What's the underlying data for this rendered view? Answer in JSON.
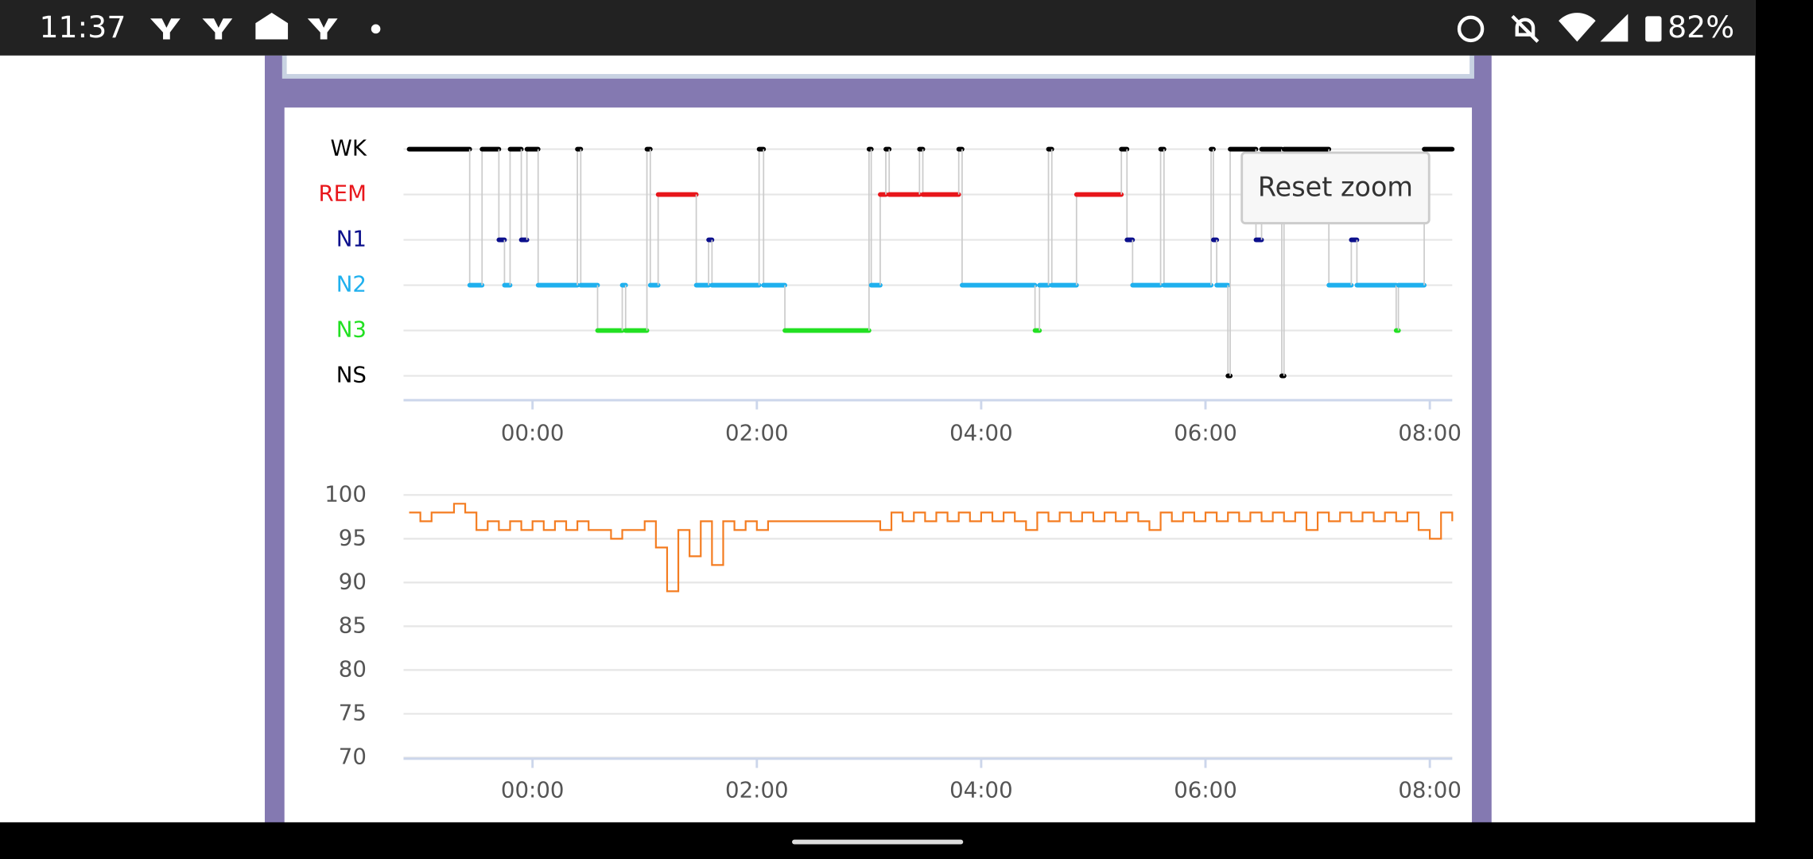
{
  "status_bar": {
    "time": "11:37",
    "battery": "82%"
  },
  "button": "Reset zoom",
  "chart_data": [
    {
      "type": "hypnogram",
      "categories": [
        "WK",
        "REM",
        "N1",
        "N2",
        "N3",
        "NS"
      ],
      "stage_colors": [
        "#000000",
        "#e8161b",
        "#0b0f8c",
        "#1fb0ee",
        "#22e022",
        "#000000"
      ],
      "x": [
        -1.1,
        -0.56,
        -0.45,
        -0.3,
        -0.25,
        -0.2,
        -0.1,
        -0.05,
        0.05,
        0.4,
        0.43,
        0.58,
        0.8,
        0.83,
        1.02,
        1.05,
        1.12,
        1.46,
        1.57,
        1.6,
        2.02,
        2.06,
        2.25,
        3.0,
        3.02,
        3.1,
        3.15,
        3.18,
        3.45,
        3.48,
        3.8,
        3.83,
        4.48,
        4.52,
        4.6,
        4.63,
        4.85,
        5.25,
        5.3,
        5.35,
        5.6,
        5.63,
        6.05,
        6.07,
        6.1,
        6.2,
        6.22,
        6.45,
        6.5,
        6.68,
        6.7,
        7.1,
        7.3,
        7.35,
        7.7,
        7.72,
        7.95
      ],
      "values": [
        "WK",
        "N2",
        "WK",
        "N1",
        "N2",
        "WK",
        "N1",
        "WK",
        "N2",
        "WK",
        "N2",
        "N3",
        "N2",
        "N3",
        "WK",
        "N2",
        "REM",
        "N2",
        "N1",
        "N2",
        "WK",
        "N2",
        "N3",
        "WK",
        "N2",
        "REM",
        "WK",
        "REM",
        "WK",
        "REM",
        "WK",
        "N2",
        "N3",
        "N2",
        "WK",
        "N2",
        "REM",
        "WK",
        "N1",
        "N2",
        "WK",
        "N2",
        "WK",
        "N1",
        "N2",
        "NS",
        "WK",
        "N1",
        "WK",
        "NS",
        "WK",
        "N2",
        "N1",
        "N2",
        "N3",
        "N2",
        "WK"
      ],
      "xlim": [
        -1.15,
        8.2
      ],
      "xticks": [
        {
          "value": 0,
          "label": "00:00"
        },
        {
          "value": 2,
          "label": "02:00"
        },
        {
          "value": 4,
          "label": "04:00"
        },
        {
          "value": 6,
          "label": "06:00"
        },
        {
          "value": 8,
          "label": "08:00"
        }
      ],
      "grid": true
    },
    {
      "type": "line",
      "color": "#f47c20",
      "x": [
        -1.1,
        -1.0,
        -0.9,
        -0.8,
        -0.7,
        -0.6,
        -0.5,
        -0.4,
        -0.3,
        -0.2,
        -0.1,
        0,
        0.1,
        0.2,
        0.3,
        0.4,
        0.5,
        0.6,
        0.7,
        0.8,
        0.9,
        1.0,
        1.1,
        1.2,
        1.3,
        1.4,
        1.5,
        1.6,
        1.7,
        1.8,
        1.9,
        2.0,
        2.1,
        2.2,
        2.3,
        2.4,
        2.5,
        2.6,
        2.7,
        2.8,
        2.9,
        3.0,
        3.1,
        3.2,
        3.3,
        3.4,
        3.5,
        3.6,
        3.7,
        3.8,
        3.9,
        4.0,
        4.1,
        4.2,
        4.3,
        4.4,
        4.5,
        4.6,
        4.7,
        4.8,
        4.9,
        5.0,
        5.1,
        5.2,
        5.3,
        5.4,
        5.5,
        5.6,
        5.7,
        5.8,
        5.9,
        6.0,
        6.1,
        6.2,
        6.3,
        6.4,
        6.5,
        6.6,
        6.7,
        6.8,
        6.9,
        7.0,
        7.1,
        7.2,
        7.3,
        7.4,
        7.5,
        7.6,
        7.7,
        7.8,
        7.9,
        8.0,
        8.1,
        8.2
      ],
      "values": [
        98,
        97,
        98,
        98,
        99,
        98,
        96,
        97,
        96,
        97,
        96,
        97,
        96,
        97,
        96,
        97,
        96,
        96,
        95,
        96,
        96,
        97,
        94,
        89,
        96,
        93,
        97,
        92,
        97,
        96,
        97,
        96,
        97,
        97,
        97,
        97,
        97,
        97,
        97,
        97,
        97,
        97,
        96,
        98,
        97,
        98,
        97,
        98,
        97,
        98,
        97,
        98,
        97,
        98,
        97,
        96,
        98,
        97,
        98,
        97,
        98,
        97,
        98,
        97,
        98,
        97,
        96,
        98,
        97,
        98,
        97,
        98,
        97,
        98,
        97,
        98,
        97,
        98,
        97,
        98,
        96,
        98,
        97,
        98,
        97,
        98,
        97,
        98,
        97,
        98,
        96,
        95,
        98,
        97
      ],
      "xlim": [
        -1.15,
        8.2
      ],
      "ylim": [
        70,
        100
      ],
      "xticks": [
        {
          "value": 0,
          "label": "00:00"
        },
        {
          "value": 2,
          "label": "02:00"
        },
        {
          "value": 4,
          "label": "04:00"
        },
        {
          "value": 6,
          "label": "06:00"
        },
        {
          "value": 8,
          "label": "08:00"
        }
      ],
      "yticks": [
        70,
        75,
        80,
        85,
        90,
        95,
        100
      ],
      "grid": true
    }
  ]
}
